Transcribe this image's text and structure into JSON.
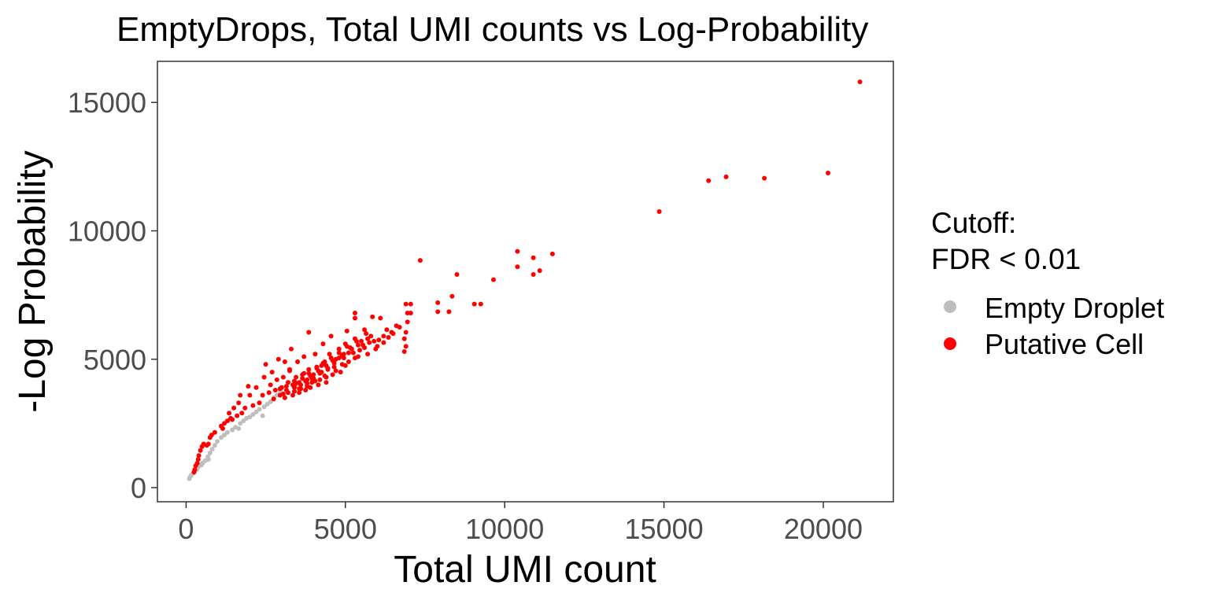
{
  "chart_data": {
    "type": "scatter",
    "title": "EmptyDrops, Total UMI counts vs Log-Probability",
    "xlabel": "Total UMI count",
    "ylabel": "-Log Probability",
    "xlim": [
      -900,
      22200
    ],
    "ylim": [
      -550,
      16600
    ],
    "x_ticks": [
      0,
      5000,
      10000,
      15000,
      20000
    ],
    "x_tick_labels": [
      "0",
      "5000",
      "10000",
      "15000",
      "20000"
    ],
    "y_ticks": [
      0,
      5000,
      10000,
      15000
    ],
    "y_tick_labels": [
      "0",
      "5000",
      "10000",
      "15000"
    ],
    "grid": false,
    "legend": {
      "title_lines": [
        "Cutoff:",
        "FDR < 0.01"
      ],
      "position": "right"
    },
    "series": [
      {
        "name": "Empty Droplet",
        "color": "#bebebe",
        "points": [
          [
            100,
            350
          ],
          [
            130,
            420
          ],
          [
            160,
            480
          ],
          [
            190,
            520
          ],
          [
            220,
            560
          ],
          [
            260,
            620
          ],
          [
            300,
            680
          ],
          [
            350,
            750
          ],
          [
            400,
            820
          ],
          [
            460,
            900
          ],
          [
            520,
            960
          ],
          [
            600,
            1050
          ],
          [
            680,
            1200
          ],
          [
            750,
            1350
          ],
          [
            820,
            1500
          ],
          [
            900,
            1650
          ],
          [
            980,
            1800
          ],
          [
            1100,
            1950
          ],
          [
            1200,
            2050
          ],
          [
            1300,
            2150
          ],
          [
            1450,
            2250
          ],
          [
            1550,
            2350
          ],
          [
            1700,
            2500
          ],
          [
            1800,
            2600
          ],
          [
            1900,
            2700
          ],
          [
            2000,
            2750
          ],
          [
            2100,
            2850
          ],
          [
            2200,
            2950
          ],
          [
            2300,
            3050
          ],
          [
            2450,
            3150
          ],
          [
            2550,
            3250
          ],
          [
            2650,
            3350
          ],
          [
            2750,
            3500
          ],
          [
            2850,
            3600
          ],
          [
            2950,
            3750
          ],
          [
            2400,
            2800
          ],
          [
            1650,
            2300
          ],
          [
            700,
            1100
          ],
          [
            480,
            880
          ],
          [
            330,
            700
          ]
        ]
      },
      {
        "name": "Putative Cell",
        "color": "#ff0000",
        "points": [
          [
            21150,
            15800
          ],
          [
            20150,
            12250
          ],
          [
            18150,
            12050
          ],
          [
            16950,
            12100
          ],
          [
            16400,
            11950
          ],
          [
            14850,
            10750
          ],
          [
            11500,
            9100
          ],
          [
            11100,
            8450
          ],
          [
            10900,
            8950
          ],
          [
            10900,
            8300
          ],
          [
            10400,
            9200
          ],
          [
            10400,
            8600
          ],
          [
            9650,
            8100
          ],
          [
            9250,
            7150
          ],
          [
            9050,
            7150
          ],
          [
            8500,
            8300
          ],
          [
            8350,
            7450
          ],
          [
            8250,
            6850
          ],
          [
            7900,
            7200
          ],
          [
            7900,
            6850
          ],
          [
            7350,
            8850
          ],
          [
            7050,
            7150
          ],
          [
            7050,
            6800
          ],
          [
            6900,
            7150
          ],
          [
            6950,
            6800
          ],
          [
            6950,
            6450
          ],
          [
            6900,
            6050
          ],
          [
            6850,
            5800
          ],
          [
            6900,
            5500
          ],
          [
            6850,
            5300
          ],
          [
            6600,
            6300
          ],
          [
            6500,
            6000
          ],
          [
            6350,
            5850
          ],
          [
            6200,
            5650
          ],
          [
            6100,
            6600
          ],
          [
            6000,
            5500
          ],
          [
            5950,
            5400
          ],
          [
            5850,
            6650
          ],
          [
            5800,
            5900
          ],
          [
            5700,
            5200
          ],
          [
            5600,
            6150
          ],
          [
            5500,
            5700
          ],
          [
            5400,
            5100
          ],
          [
            5300,
            6800
          ],
          [
            5300,
            6600
          ],
          [
            5300,
            5800
          ],
          [
            5200,
            5400
          ],
          [
            5100,
            4900
          ],
          [
            5050,
            6100
          ],
          [
            5000,
            5600
          ],
          [
            4950,
            5200
          ],
          [
            4900,
            4800
          ],
          [
            4850,
            4500
          ],
          [
            4800,
            5400
          ],
          [
            4700,
            5000
          ],
          [
            4650,
            4700
          ],
          [
            4600,
            4400
          ],
          [
            4550,
            5900
          ],
          [
            4500,
            5200
          ],
          [
            4450,
            4600
          ],
          [
            4400,
            4300
          ],
          [
            4400,
            4100
          ],
          [
            4350,
            4900
          ],
          [
            4300,
            5600
          ],
          [
            4250,
            4500
          ],
          [
            4200,
            4200
          ],
          [
            4150,
            4000
          ],
          [
            4100,
            4700
          ],
          [
            4050,
            5200
          ],
          [
            4000,
            4400
          ],
          [
            3950,
            4100
          ],
          [
            3900,
            3900
          ],
          [
            3850,
            6050
          ],
          [
            3850,
            4600
          ],
          [
            3800,
            4200
          ],
          [
            3750,
            3800
          ],
          [
            3700,
            5100
          ],
          [
            3650,
            4400
          ],
          [
            3600,
            4000
          ],
          [
            3550,
            3700
          ],
          [
            3500,
            4900
          ],
          [
            3450,
            4300
          ],
          [
            3400,
            3900
          ],
          [
            3350,
            3600
          ],
          [
            3300,
            5400
          ],
          [
            3250,
            4600
          ],
          [
            3200,
            4100
          ],
          [
            3150,
            3800
          ],
          [
            3100,
            3500
          ],
          [
            3100,
            4900
          ],
          [
            3050,
            4300
          ],
          [
            3000,
            3900
          ],
          [
            2950,
            3600
          ],
          [
            2900,
            5000
          ],
          [
            2850,
            4200
          ],
          [
            2800,
            3800
          ],
          [
            2750,
            3450
          ],
          [
            2700,
            4500
          ],
          [
            2650,
            4000
          ],
          [
            2600,
            3700
          ],
          [
            2500,
            4800
          ],
          [
            2450,
            4300
          ],
          [
            2400,
            3600
          ],
          [
            2300,
            3300
          ],
          [
            2200,
            3900
          ],
          [
            2100,
            3200
          ],
          [
            2000,
            3600
          ],
          [
            1950,
            3950
          ],
          [
            1850,
            3100
          ],
          [
            1750,
            2900
          ],
          [
            1700,
            3600
          ],
          [
            1650,
            3300
          ],
          [
            1600,
            2800
          ],
          [
            1500,
            3100
          ],
          [
            1450,
            2650
          ],
          [
            1400,
            2700
          ],
          [
            1350,
            2900
          ],
          [
            1300,
            2600
          ],
          [
            1200,
            2500
          ],
          [
            1150,
            2300
          ],
          [
            1100,
            2400
          ],
          [
            900,
            2150
          ],
          [
            800,
            2050
          ],
          [
            750,
            1950
          ],
          [
            700,
            1700
          ],
          [
            650,
            1650
          ],
          [
            550,
            1700
          ],
          [
            500,
            1600
          ],
          [
            450,
            1450
          ],
          [
            400,
            1250
          ],
          [
            380,
            1100
          ],
          [
            350,
            950
          ],
          [
            300,
            850
          ],
          [
            270,
            700
          ],
          [
            250,
            600
          ],
          [
            3250,
            4550
          ],
          [
            3400,
            4150
          ],
          [
            3700,
            4450
          ],
          [
            3950,
            4250
          ],
          [
            4250,
            4750
          ],
          [
            4600,
            4950
          ],
          [
            4900,
            5150
          ],
          [
            5150,
            5450
          ],
          [
            5450,
            5350
          ],
          [
            5750,
            5650
          ],
          [
            6050,
            5750
          ],
          [
            6300,
            6150
          ],
          [
            3550,
            3850
          ],
          [
            3800,
            3950
          ],
          [
            4050,
            4150
          ],
          [
            4350,
            4350
          ],
          [
            4700,
            4550
          ],
          [
            5000,
            4750
          ],
          [
            5300,
            5050
          ],
          [
            5600,
            5450
          ],
          [
            5900,
            5700
          ],
          [
            6200,
            5900
          ],
          [
            6450,
            6050
          ],
          [
            6700,
            6250
          ],
          [
            3050,
            3650
          ],
          [
            3200,
            3700
          ],
          [
            3400,
            3750
          ],
          [
            3600,
            3850
          ],
          [
            3800,
            4050
          ],
          [
            4000,
            4250
          ],
          [
            4200,
            4450
          ],
          [
            4450,
            4650
          ],
          [
            4800,
            5050
          ],
          [
            5100,
            5250
          ],
          [
            5400,
            5550
          ],
          [
            5700,
            5800
          ],
          [
            3350,
            4000
          ],
          [
            3550,
            4100
          ],
          [
            3750,
            4150
          ],
          [
            3900,
            4350
          ],
          [
            4150,
            4550
          ],
          [
            4400,
            4750
          ],
          [
            4650,
            4850
          ],
          [
            4950,
            5050
          ],
          [
            5250,
            5250
          ],
          [
            5550,
            5550
          ],
          [
            2950,
            3850
          ],
          [
            3150,
            3950
          ],
          [
            3450,
            4050
          ],
          [
            3650,
            4250
          ],
          [
            3850,
            4450
          ],
          [
            4100,
            4650
          ],
          [
            4300,
            4850
          ],
          [
            4550,
            5050
          ],
          [
            4800,
            5250
          ],
          [
            5050,
            5500
          ],
          [
            5350,
            5700
          ],
          [
            5650,
            6000
          ]
        ]
      }
    ]
  }
}
